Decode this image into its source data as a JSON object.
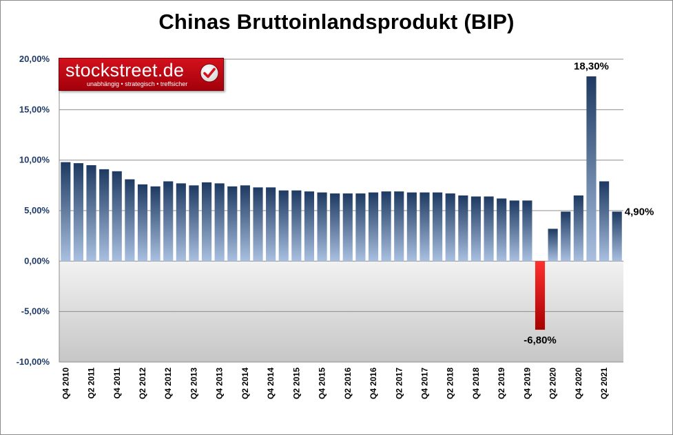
{
  "title": "Chinas Bruttoinlandsprodukt (BIP)",
  "logo": {
    "name": "stockstreet.de",
    "slogan": "unabhängig • strategisch • treffsicher",
    "icon": "check-icon"
  },
  "chart_data": {
    "type": "bar",
    "title": "Chinas Bruttoinlandsprodukt (BIP)",
    "xlabel": "",
    "ylabel": "",
    "ylim": [
      -10,
      20
    ],
    "yticks": [
      "20,00%",
      "15,00%",
      "10,00%",
      "5,00%",
      "0,00%",
      "-5,00%",
      "-10,00%"
    ],
    "ytick_values": [
      20,
      15,
      10,
      5,
      0,
      -5,
      -10
    ],
    "grid": true,
    "legend": "none",
    "categories": [
      "Q4 2010",
      "Q1 2011",
      "Q2 2011",
      "Q3 2011",
      "Q4 2011",
      "Q1 2012",
      "Q2 2012",
      "Q3 2012",
      "Q4 2012",
      "Q1 2013",
      "Q2 2013",
      "Q3 2013",
      "Q4 2013",
      "Q1 2014",
      "Q2 2014",
      "Q3 2014",
      "Q4 2014",
      "Q1 2015",
      "Q2 2015",
      "Q3 2015",
      "Q4 2015",
      "Q1 2016",
      "Q2 2016",
      "Q3 2016",
      "Q4 2016",
      "Q1 2017",
      "Q2 2017",
      "Q3 2017",
      "Q4 2017",
      "Q1 2018",
      "Q2 2018",
      "Q3 2018",
      "Q4 2018",
      "Q1 2019",
      "Q2 2019",
      "Q3 2019",
      "Q4 2019",
      "Q1 2020",
      "Q2 2020",
      "Q3 2020",
      "Q4 2020",
      "Q1 2021",
      "Q2 2021",
      "Q3 2021"
    ],
    "tick_labels": [
      "Q4 2010",
      "",
      "Q2 2011",
      "",
      "Q4 2011",
      "",
      "Q2 2012",
      "",
      "Q4 2012",
      "",
      "Q2 2013",
      "",
      "Q4 2013",
      "",
      "Q2 2014",
      "",
      "Q4 2014",
      "",
      "Q2 2015",
      "",
      "Q4 2015",
      "",
      "Q2 2016",
      "",
      "Q4 2016",
      "",
      "Q2 2017",
      "",
      "Q4 2017",
      "",
      "Q2 2018",
      "",
      "Q4 2018",
      "",
      "Q2 2019",
      "",
      "Q4 2019",
      "",
      "Q2 2020",
      "",
      "Q4 2020",
      "",
      "Q2 2021",
      ""
    ],
    "values": [
      9.8,
      9.7,
      9.5,
      9.1,
      8.9,
      8.1,
      7.6,
      7.4,
      7.9,
      7.7,
      7.5,
      7.8,
      7.7,
      7.4,
      7.5,
      7.3,
      7.3,
      7.0,
      7.0,
      6.9,
      6.8,
      6.7,
      6.7,
      6.7,
      6.8,
      6.9,
      6.9,
      6.8,
      6.8,
      6.8,
      6.7,
      6.5,
      6.4,
      6.4,
      6.2,
      6.0,
      6.0,
      -6.8,
      3.2,
      4.9,
      6.5,
      18.3,
      7.9,
      4.9
    ],
    "data_labels": [
      {
        "index": 37,
        "text": "-6,80%"
      },
      {
        "index": 41,
        "text": "18,30%"
      },
      {
        "index": 43,
        "text": "4,90%"
      }
    ],
    "colors": {
      "positive_top": "#1e3a62",
      "positive_bottom": "#a9c0e0",
      "negative_top": "#ff3030",
      "negative_bottom": "#a80000",
      "negative_zone_top": "#f2f2f2",
      "negative_zone_bottom": "#c6c6c6",
      "ytick_text": "#1f3a66"
    }
  }
}
